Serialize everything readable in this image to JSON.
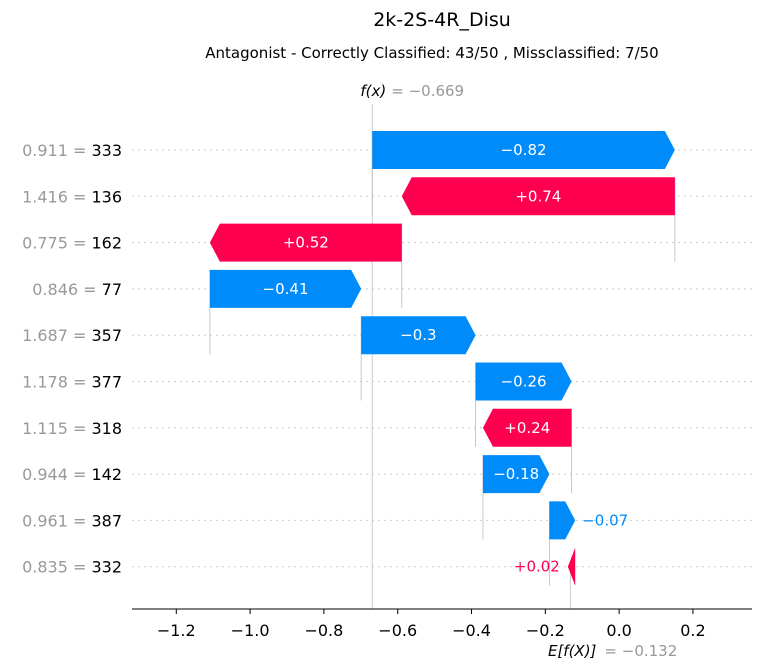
{
  "chart_data": {
    "type": "waterfall",
    "title": "2k-2S-4R_Disu",
    "subtitle": "Antagonist - Correctly Classified: 43/50 , Missclassified: 7/50",
    "fx_label": "f(x)",
    "fx_value_text": "= −0.669",
    "fx_value": -0.669,
    "ex_label": "E[f(X)]",
    "ex_value_text": "= −0.132",
    "ex_value": -0.132,
    "xlim": [
      -1.32,
      0.36
    ],
    "xticks": [
      -1.2,
      -1.0,
      -0.8,
      -0.6,
      -0.4,
      -0.2,
      0.0,
      0.2
    ],
    "xtick_labels": [
      "−1.2",
      "−1.0",
      "−0.8",
      "−0.6",
      "−0.4",
      "−0.2",
      "0.0",
      "0.2"
    ],
    "features": [
      {
        "value": "0.911",
        "eq": " = ",
        "name": "333",
        "start": -0.669,
        "end": 0.151,
        "label": "−0.82"
      },
      {
        "value": "1.416",
        "eq": " = ",
        "name": "136",
        "start": 0.151,
        "end": -0.589,
        "label": "+0.74"
      },
      {
        "value": "0.775",
        "eq": " = ",
        "name": "162",
        "start": -0.589,
        "end": -1.109,
        "label": "+0.52"
      },
      {
        "value": "0.846",
        "eq": " = ",
        "name": "77",
        "start": -1.109,
        "end": -0.699,
        "label": "−0.41"
      },
      {
        "value": "1.687",
        "eq": " = ",
        "name": "357",
        "start": -0.699,
        "end": -0.389,
        "label": "−0.3"
      },
      {
        "value": "1.178",
        "eq": " = ",
        "name": "377",
        "start": -0.389,
        "end": -0.129,
        "label": "−0.26"
      },
      {
        "value": "1.115",
        "eq": " = ",
        "name": "318",
        "start": -0.129,
        "end": -0.369,
        "label": "+0.24"
      },
      {
        "value": "0.944",
        "eq": " = ",
        "name": "142",
        "start": -0.369,
        "end": -0.189,
        "label": "−0.18"
      },
      {
        "value": "0.961",
        "eq": " = ",
        "name": "387",
        "start": -0.189,
        "end": -0.119,
        "label": "−0.07"
      },
      {
        "value": "0.835",
        "eq": " = ",
        "name": "332",
        "start": -0.119,
        "end": -0.139,
        "label": "+0.02"
      }
    ],
    "colors": {
      "positive": "#ff0051",
      "negative": "#008bfb",
      "muted": "#999999",
      "text": "#000000",
      "gridline": "#cccccc"
    }
  }
}
